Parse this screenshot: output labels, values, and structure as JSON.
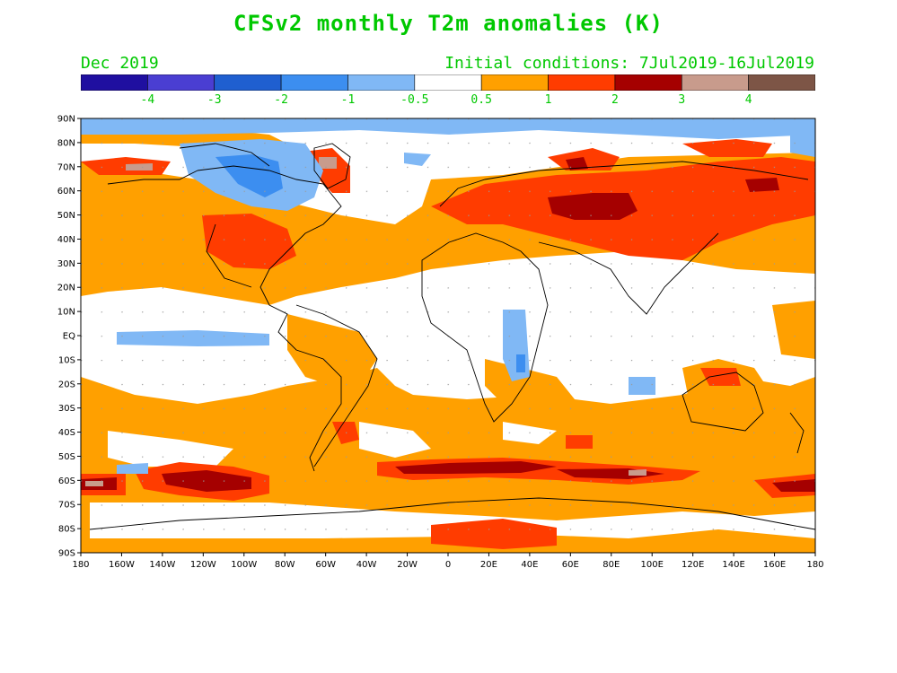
{
  "title": "CFSv2 monthly T2m anomalies (K)",
  "subtitle_left": "Dec 2019",
  "subtitle_right": "Initial conditions: 7Jul2019-16Jul2019",
  "colorbar": {
    "colors": [
      "#1f0fa0",
      "#4a3ed2",
      "#1f5fd0",
      "#3c8ef0",
      "#80b8f5",
      "#ffffff",
      "#ffa000",
      "#ff3c00",
      "#a50000",
      "#c89b8c",
      "#7d5546"
    ],
    "labels": [
      "-4",
      "-3",
      "-2",
      "-1",
      "-0.5",
      "0.5",
      "1",
      "2",
      "3",
      "4"
    ]
  },
  "axes": {
    "lat_labels": [
      "90N",
      "80N",
      "70N",
      "60N",
      "50N",
      "40N",
      "30N",
      "20N",
      "10N",
      "EQ",
      "10S",
      "20S",
      "30S",
      "40S",
      "50S",
      "60S",
      "70S",
      "80S",
      "90S"
    ],
    "lon_labels": [
      "180",
      "160W",
      "140W",
      "120W",
      "100W",
      "80W",
      "60W",
      "40W",
      "20W",
      "0",
      "20E",
      "40E",
      "60E",
      "80E",
      "100E",
      "120E",
      "140E",
      "160E",
      "180"
    ]
  },
  "legend_colors": {
    "weak_warm": "#ffa000",
    "mod_warm": "#ff3c00",
    "strong_warm": "#a50000",
    "extreme_warm": "#c89b8c",
    "weak_cool": "#80b8f5",
    "mod_cool": "#3c8ef0"
  }
}
